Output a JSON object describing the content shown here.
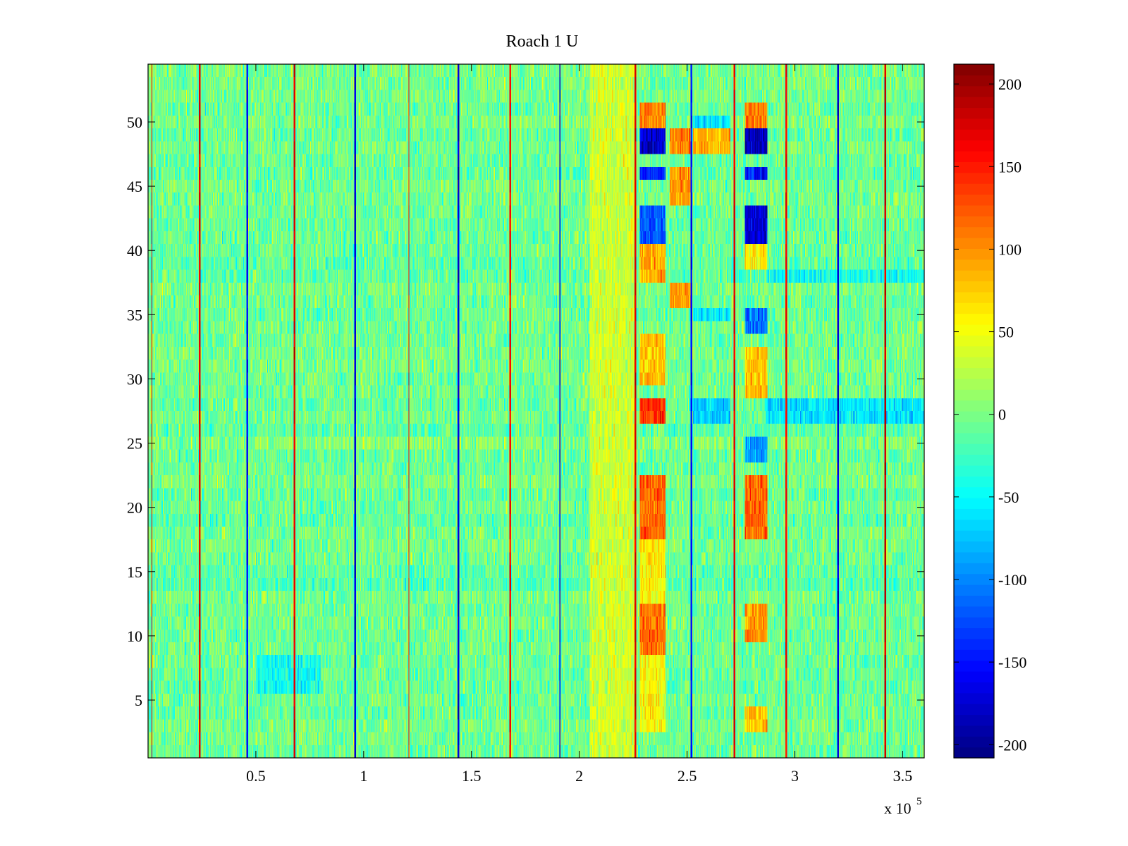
{
  "chart_data": {
    "type": "heatmap",
    "title": "Roach 1 U",
    "xlabel": "",
    "ylabel": "",
    "x_multiplier_label": "x 10",
    "x_multiplier_exponent": "5",
    "xlim": [
      0,
      3.6
    ],
    "ylim": [
      0.5,
      54.5
    ],
    "n_rows": 54,
    "x_ticks": [
      {
        "value": 0.5,
        "label": "0.5"
      },
      {
        "value": 1,
        "label": "1"
      },
      {
        "value": 1.5,
        "label": "1.5"
      },
      {
        "value": 2,
        "label": "2"
      },
      {
        "value": 2.5,
        "label": "2.5"
      },
      {
        "value": 3,
        "label": "3"
      },
      {
        "value": 3.5,
        "label": "3.5"
      }
    ],
    "y_ticks": [
      {
        "value": 5,
        "label": "5"
      },
      {
        "value": 10,
        "label": "10"
      },
      {
        "value": 15,
        "label": "15"
      },
      {
        "value": 20,
        "label": "20"
      },
      {
        "value": 25,
        "label": "25"
      },
      {
        "value": 30,
        "label": "30"
      },
      {
        "value": 35,
        "label": "35"
      },
      {
        "value": 40,
        "label": "40"
      },
      {
        "value": 45,
        "label": "45"
      },
      {
        "value": 50,
        "label": "50"
      }
    ],
    "colorbar": {
      "colormap": "jet",
      "clim": [
        -208,
        212
      ],
      "ticks": [
        {
          "value": 200,
          "label": "200"
        },
        {
          "value": 150,
          "label": "150"
        },
        {
          "value": 100,
          "label": "100"
        },
        {
          "value": 50,
          "label": "50"
        },
        {
          "value": 0,
          "label": "0"
        },
        {
          "value": -50,
          "label": "-50"
        },
        {
          "value": -100,
          "label": "-100"
        },
        {
          "value": -150,
          "label": "-150"
        },
        {
          "value": -200,
          "label": "-200"
        }
      ]
    },
    "noise_level": 28,
    "baseline": -5,
    "vertical_lines": [
      {
        "x": 0.017,
        "value": 180
      },
      {
        "x": 0.24,
        "value": 170
      },
      {
        "x": 0.46,
        "value": -150
      },
      {
        "x": 0.68,
        "value": 170
      },
      {
        "x": 0.96,
        "value": -170
      },
      {
        "x": 1.21,
        "value": 160
      },
      {
        "x": 1.44,
        "value": -170
      },
      {
        "x": 1.68,
        "value": 160
      },
      {
        "x": 1.91,
        "value": -170
      },
      {
        "x": 2.26,
        "value": 170
      },
      {
        "x": 2.52,
        "value": -150
      },
      {
        "x": 2.72,
        "value": 170
      },
      {
        "x": 2.96,
        "value": 160
      },
      {
        "x": 3.2,
        "value": -170
      },
      {
        "x": 3.42,
        "value": 180
      }
    ],
    "bands": [
      {
        "x0": 2.05,
        "x1": 2.26,
        "rows": [
          1,
          54
        ],
        "value": 35
      },
      {
        "x0": 2.28,
        "x1": 2.4,
        "rows": [
          48,
          49
        ],
        "value": -175
      },
      {
        "x0": 2.28,
        "x1": 2.4,
        "rows": [
          50,
          51
        ],
        "value": 110
      },
      {
        "x0": 2.28,
        "x1": 2.4,
        "rows": [
          46,
          46
        ],
        "value": -140
      },
      {
        "x0": 2.28,
        "x1": 2.4,
        "rows": [
          41,
          43
        ],
        "value": -120
      },
      {
        "x0": 2.28,
        "x1": 2.4,
        "rows": [
          38,
          40
        ],
        "value": 90
      },
      {
        "x0": 2.28,
        "x1": 2.4,
        "rows": [
          30,
          33
        ],
        "value": 80
      },
      {
        "x0": 2.28,
        "x1": 2.4,
        "rows": [
          27,
          28
        ],
        "value": 140
      },
      {
        "x0": 2.28,
        "x1": 2.4,
        "rows": [
          18,
          22
        ],
        "value": 120
      },
      {
        "x0": 2.28,
        "x1": 2.4,
        "rows": [
          9,
          12
        ],
        "value": 115
      },
      {
        "x0": 2.28,
        "x1": 2.4,
        "rows": [
          13,
          17
        ],
        "value": 60
      },
      {
        "x0": 2.28,
        "x1": 2.4,
        "rows": [
          3,
          8
        ],
        "value": 55
      },
      {
        "x0": 2.42,
        "x1": 2.52,
        "rows": [
          48,
          49
        ],
        "value": 110
      },
      {
        "x0": 2.42,
        "x1": 2.52,
        "rows": [
          45,
          46
        ],
        "value": 100
      },
      {
        "x0": 2.42,
        "x1": 2.52,
        "rows": [
          36,
          37
        ],
        "value": 95
      },
      {
        "x0": 2.42,
        "x1": 2.52,
        "rows": [
          44,
          44
        ],
        "value": 90
      },
      {
        "x0": 2.53,
        "x1": 2.7,
        "rows": [
          48,
          49
        ],
        "value": 85
      },
      {
        "x0": 2.53,
        "x1": 2.7,
        "rows": [
          50,
          50
        ],
        "value": -60
      },
      {
        "x0": 2.53,
        "x1": 2.7,
        "rows": [
          27,
          28
        ],
        "value": -70
      },
      {
        "x0": 2.53,
        "x1": 2.7,
        "rows": [
          35,
          35
        ],
        "value": -55
      },
      {
        "x0": 2.77,
        "x1": 2.87,
        "rows": [
          48,
          49
        ],
        "value": -185
      },
      {
        "x0": 2.77,
        "x1": 2.87,
        "rows": [
          50,
          51
        ],
        "value": 110
      },
      {
        "x0": 2.77,
        "x1": 2.87,
        "rows": [
          46,
          46
        ],
        "value": -150
      },
      {
        "x0": 2.77,
        "x1": 2.87,
        "rows": [
          41,
          43
        ],
        "value": -170
      },
      {
        "x0": 2.77,
        "x1": 2.87,
        "rows": [
          39,
          40
        ],
        "value": 60
      },
      {
        "x0": 2.77,
        "x1": 2.87,
        "rows": [
          34,
          35
        ],
        "value": -110
      },
      {
        "x0": 2.77,
        "x1": 2.87,
        "rows": [
          29,
          32
        ],
        "value": 80
      },
      {
        "x0": 2.77,
        "x1": 2.87,
        "rows": [
          24,
          25
        ],
        "value": -90
      },
      {
        "x0": 2.77,
        "x1": 2.87,
        "rows": [
          18,
          22
        ],
        "value": 120
      },
      {
        "x0": 2.77,
        "x1": 2.87,
        "rows": [
          10,
          12
        ],
        "value": 100
      },
      {
        "x0": 2.77,
        "x1": 2.87,
        "rows": [
          3,
          4
        ],
        "value": 80
      },
      {
        "x0": 2.87,
        "x1": 3.6,
        "rows": [
          27,
          28
        ],
        "value": -60
      },
      {
        "x0": 2.87,
        "x1": 3.6,
        "rows": [
          38,
          38
        ],
        "value": -45
      },
      {
        "x0": 0.5,
        "x1": 0.8,
        "rows": [
          6,
          8
        ],
        "value": -45
      }
    ]
  }
}
